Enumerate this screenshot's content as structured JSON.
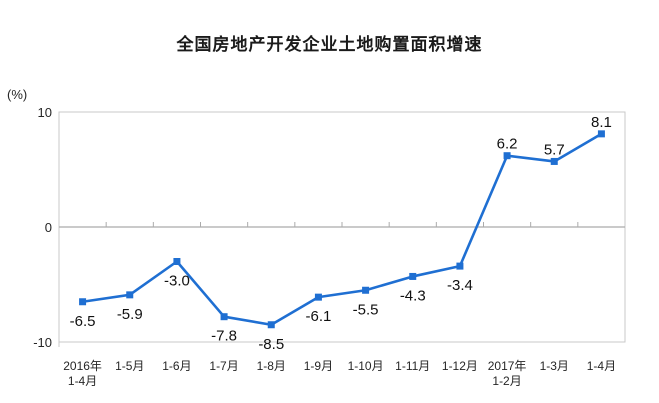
{
  "chart_data": {
    "type": "line",
    "title": "全国房地产开发企业土地购置面积增速",
    "ylabel": "(%)",
    "xlabel": "",
    "categories": [
      "2016年\n1-4月",
      "1-5月",
      "1-6月",
      "1-7月",
      "1-8月",
      "1-9月",
      "1-10月",
      "1-11月",
      "1-12月",
      "2017年\n1-2月",
      "1-3月",
      "1-4月"
    ],
    "values": [
      -6.5,
      -5.9,
      -3.0,
      -7.8,
      -8.5,
      -6.1,
      -5.5,
      -4.3,
      -3.4,
      6.2,
      5.7,
      8.1
    ],
    "ylim": [
      -10,
      10
    ],
    "yticks": [
      10,
      0,
      -10
    ],
    "grid": false,
    "legend": "none",
    "line_color": "#1f6fd2",
    "marker": "square",
    "marker_color": "#1f6fd2",
    "data_label_color": "#111111",
    "axis_text_color": "#262626",
    "plot_border_color": "#c9c9c9",
    "zero_line_color": "#ababab"
  }
}
